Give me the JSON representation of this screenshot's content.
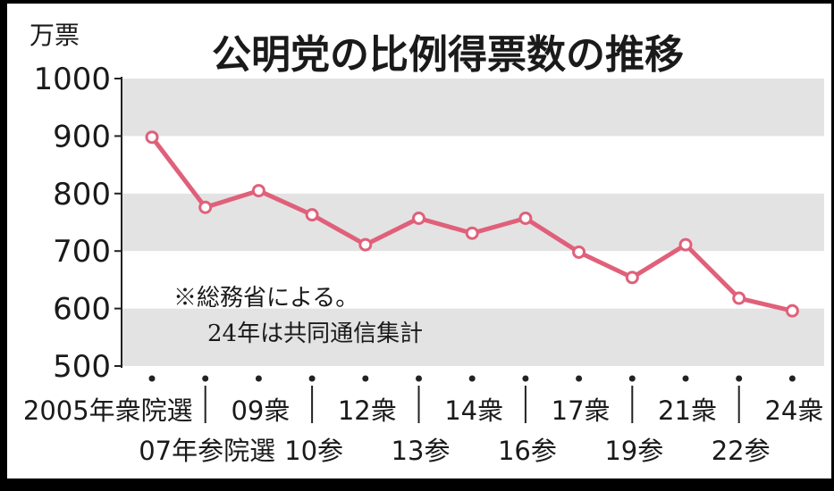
{
  "chart_data": {
    "type": "line",
    "title": "公明党の比例得票数の推移",
    "ylabel": "万票",
    "ylim": [
      500,
      1000
    ],
    "yticks": [
      500,
      600,
      700,
      800,
      900,
      1000
    ],
    "x_labels_row1": [
      "2005年衆院選",
      "09衆",
      "12衆",
      "14衆",
      "17衆",
      "21衆",
      "24衆"
    ],
    "x_labels_row2": [
      "07年参院選",
      "10参",
      "13参",
      "16参",
      "19参",
      "22参"
    ],
    "categories": [
      "2005年衆院選",
      "07年参院選",
      "09衆",
      "10参",
      "12衆",
      "13参",
      "14衆",
      "16参",
      "17衆",
      "19参",
      "21衆",
      "22参",
      "24衆"
    ],
    "values": [
      898,
      776,
      805,
      763,
      711,
      757,
      731,
      757,
      698,
      654,
      711,
      618,
      596
    ],
    "annotation": [
      "※総務省による。",
      "24年は共同通信集計"
    ],
    "grid": "alternating gray bands",
    "line_color": "#e0607a",
    "band_color": "#e3e3e3"
  }
}
